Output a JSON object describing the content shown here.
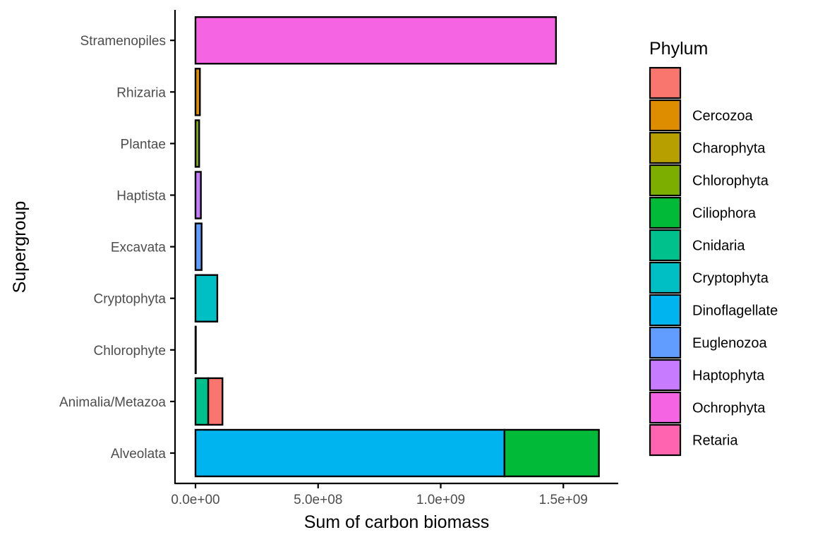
{
  "chart_data": {
    "type": "bar",
    "orientation": "horizontal",
    "stacked": true,
    "xlabel": "Sum of carbon biomass",
    "ylabel": "Supergroup",
    "x_ticks": [
      {
        "value": 0,
        "label": "0.0e+00"
      },
      {
        "value": 500000000,
        "label": "5.0e+08"
      },
      {
        "value": 1000000000,
        "label": "1.0e+09"
      },
      {
        "value": 1500000000,
        "label": "1.5e+09"
      }
    ],
    "xlim": [
      -80000000,
      1720000000
    ],
    "categories": [
      "Alveolata",
      "Animalia/Metazoa",
      "Chlorophyte",
      "Cryptophyta",
      "Excavata",
      "Haptista",
      "Plantae",
      "Rhizaria",
      "Stramenopiles"
    ],
    "legend": {
      "title": "Phylum",
      "position": "right",
      "entries": [
        {
          "label": "",
          "color": "#F8766D"
        },
        {
          "label": "Cercozoa",
          "color": "#DE8C00"
        },
        {
          "label": "Charophyta",
          "color": "#B79F00"
        },
        {
          "label": "Chlorophyta",
          "color": "#7CAE00"
        },
        {
          "label": "Ciliophora",
          "color": "#00BA38"
        },
        {
          "label": "Cnidaria",
          "color": "#00C08B"
        },
        {
          "label": "Cryptophyta",
          "color": "#00BFC4"
        },
        {
          "label": "Dinoflagellate",
          "color": "#00B4F0"
        },
        {
          "label": "Euglenozoa",
          "color": "#619CFF"
        },
        {
          "label": "Haptophyta",
          "color": "#C77CFF"
        },
        {
          "label": "Ochrophyta",
          "color": "#F564E3"
        },
        {
          "label": "Retaria",
          "color": "#FF64B0"
        }
      ]
    },
    "bars": [
      {
        "category": "Alveolata",
        "segments": [
          {
            "phylum": "Dinoflagellate",
            "value": 1260000000
          },
          {
            "phylum": "Ciliophora",
            "value": 385000000
          }
        ]
      },
      {
        "category": "Animalia/Metazoa",
        "segments": [
          {
            "phylum": "Cnidaria",
            "value": 52000000
          },
          {
            "phylum": "",
            "value": 58000000
          }
        ]
      },
      {
        "category": "Chlorophyte",
        "segments": [
          {
            "phylum": "Chlorophyta",
            "value": 500000
          }
        ]
      },
      {
        "category": "Cryptophyta",
        "segments": [
          {
            "phylum": "Cryptophyta",
            "value": 89000000
          }
        ]
      },
      {
        "category": "Excavata",
        "segments": [
          {
            "phylum": "Euglenozoa",
            "value": 25000000
          }
        ]
      },
      {
        "category": "Haptista",
        "segments": [
          {
            "phylum": "Haptophyta",
            "value": 22000000
          }
        ]
      },
      {
        "category": "Plantae",
        "segments": [
          {
            "phylum": "Chlorophyta",
            "value": 15000000
          }
        ]
      },
      {
        "category": "Rhizaria",
        "segments": [
          {
            "phylum": "Cercozoa",
            "value": 18000000
          }
        ]
      },
      {
        "category": "Stramenopiles",
        "segments": [
          {
            "phylum": "Ochrophyta",
            "value": 1470000000
          }
        ]
      }
    ],
    "grid": false
  }
}
